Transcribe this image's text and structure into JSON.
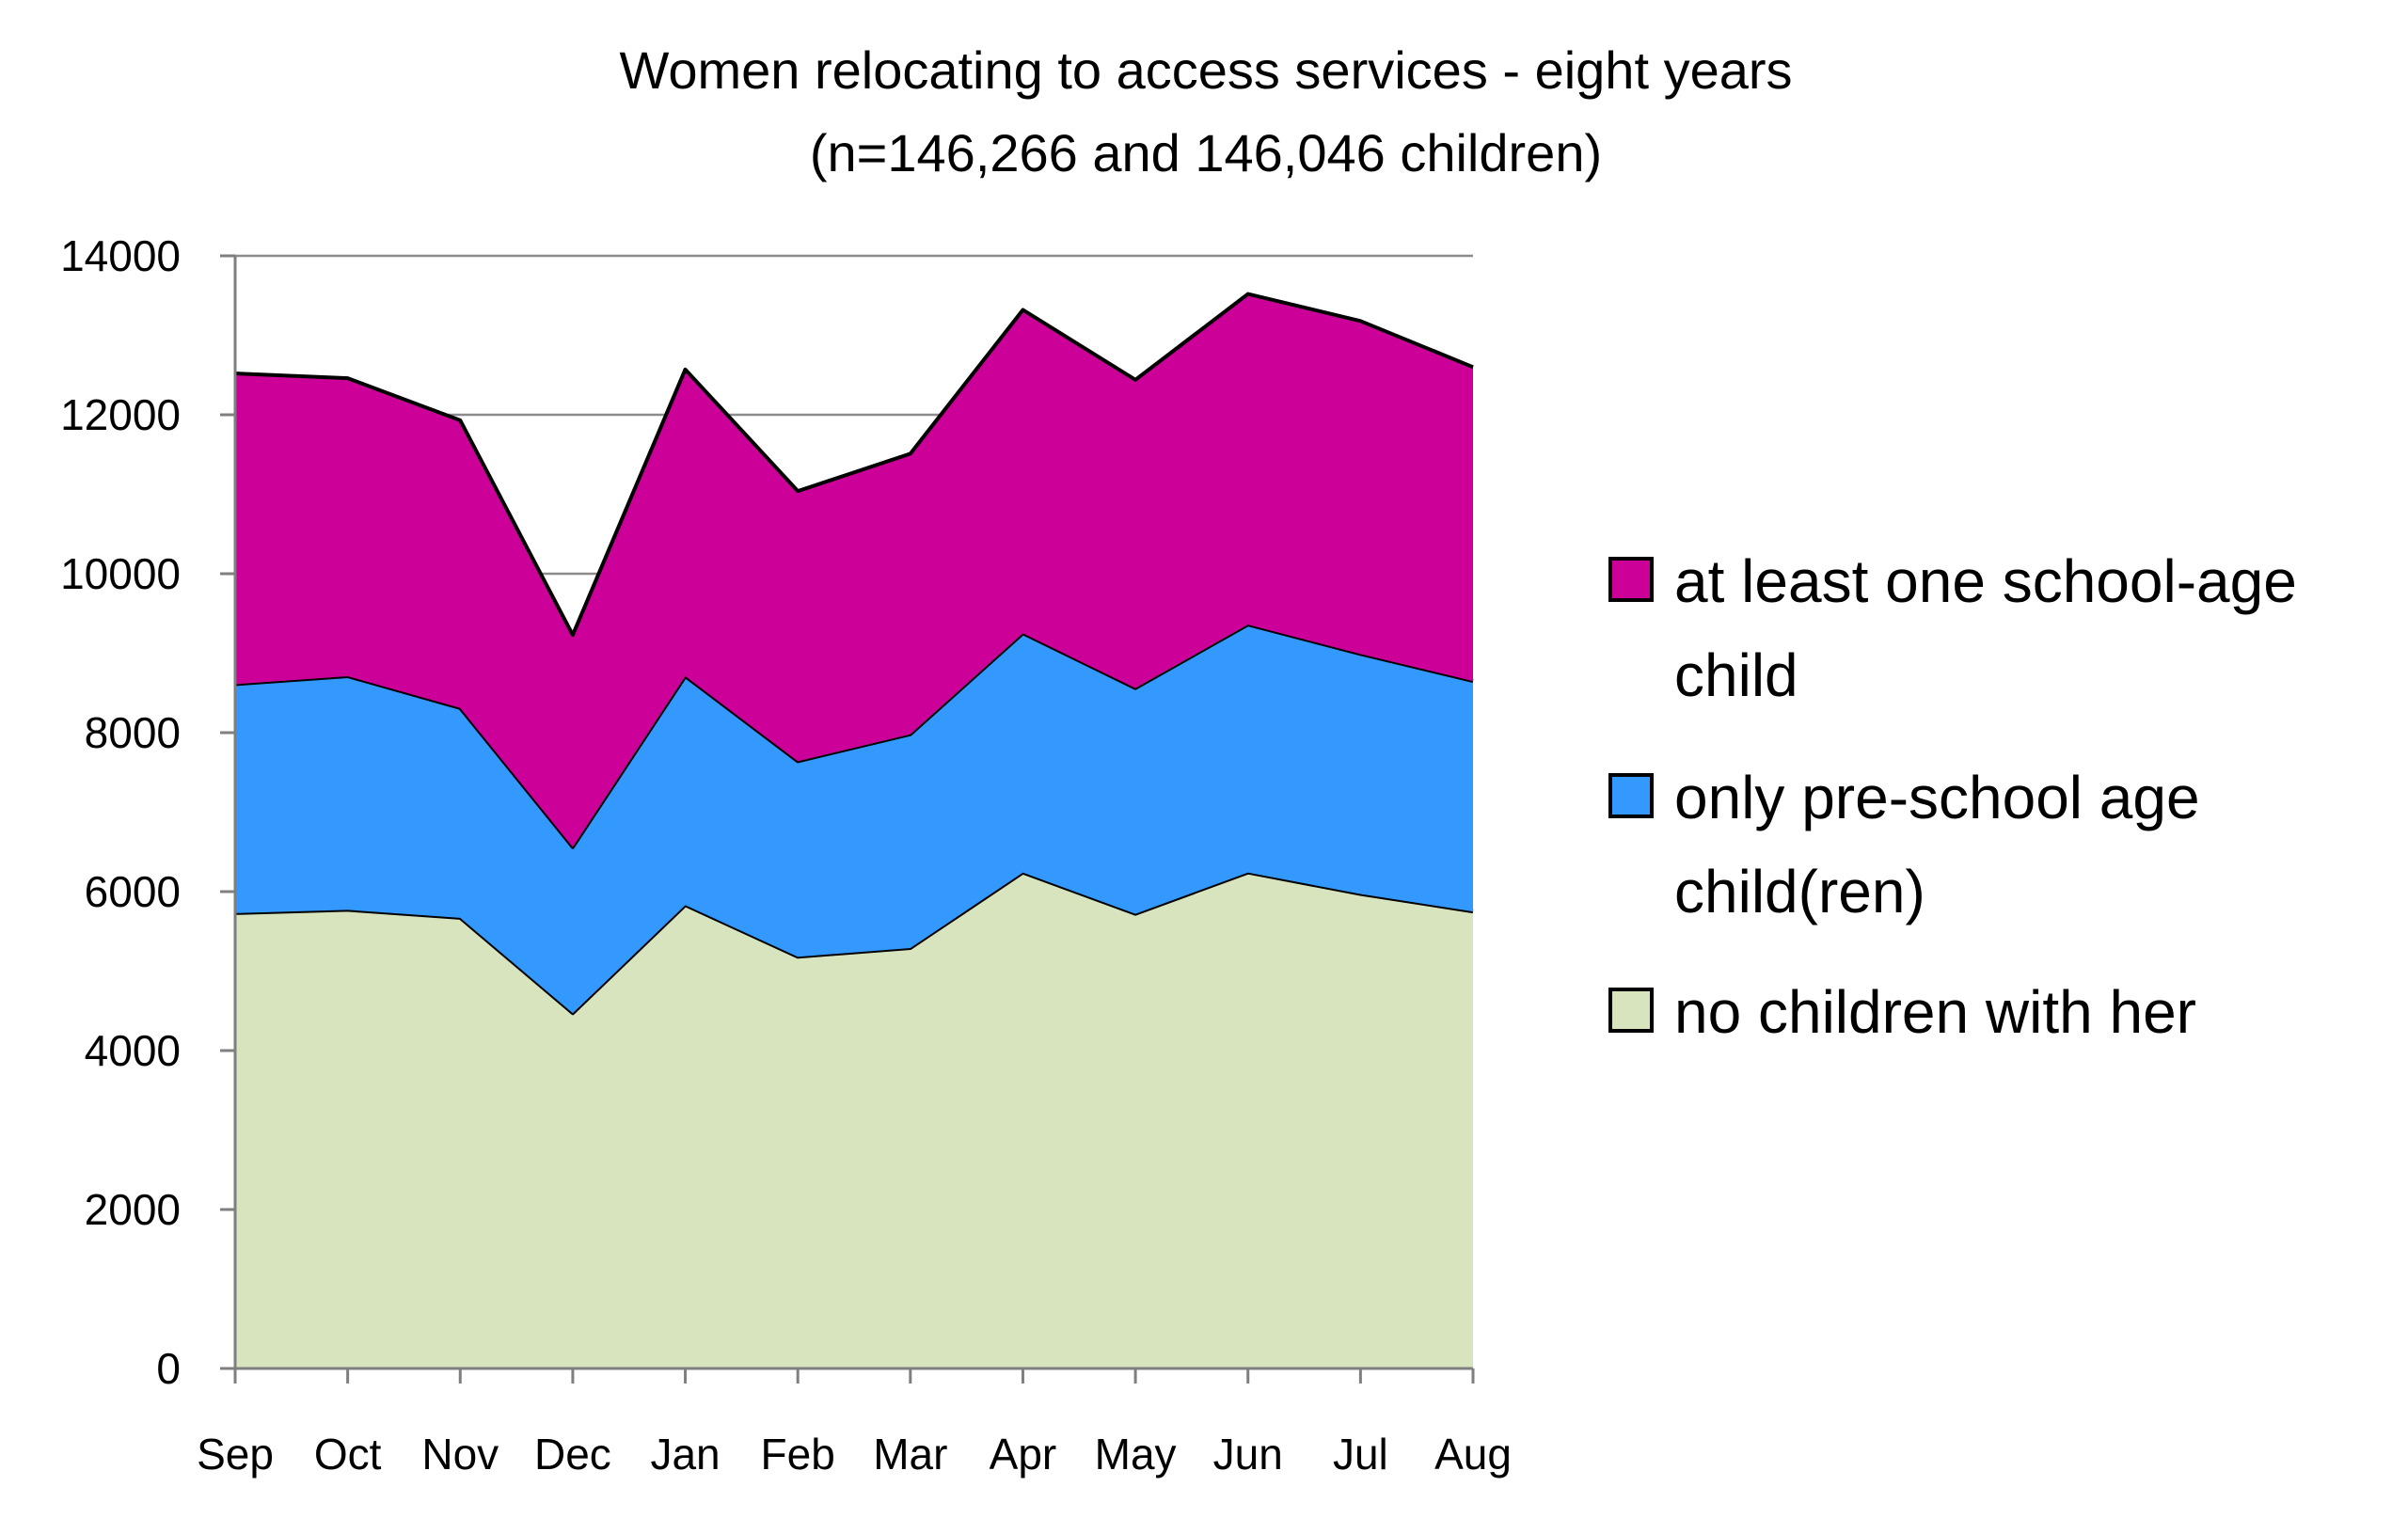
{
  "chart_data": {
    "type": "area",
    "stacked": true,
    "title": "Women relocating to access services - eight years",
    "subtitle": "(n=146,266 and 146,046 children)",
    "xlabel": "",
    "ylabel": "",
    "categories": [
      "Sep",
      "Oct",
      "Nov",
      "Dec",
      "Jan",
      "Feb",
      "Mar",
      "Apr",
      "May",
      "Jun",
      "Jul",
      "Aug"
    ],
    "ylim": [
      0,
      14000
    ],
    "yticks": [
      0,
      2000,
      4000,
      6000,
      8000,
      10000,
      12000,
      14000
    ],
    "grid": true,
    "legend_position": "right",
    "legend_order": [
      "at least one school-age child",
      "only pre-school age child(ren)",
      "no children with her"
    ],
    "series": [
      {
        "name": "no children with her",
        "color": "#d7e4bd",
        "values": [
          5730,
          5770,
          5670,
          4470,
          5830,
          5180,
          5290,
          6240,
          5720,
          6240,
          5970,
          5750
        ]
      },
      {
        "name": "only pre-school age child(ren)",
        "color": "#3399ff",
        "values": [
          2880,
          2940,
          2640,
          2090,
          2880,
          2460,
          2690,
          3010,
          2840,
          3120,
          3020,
          2900
        ]
      },
      {
        "name": "at least one school-age child",
        "color": "#cc0099",
        "values": [
          3910,
          3750,
          3620,
          2670,
          3860,
          3400,
          3530,
          4070,
          3880,
          4160,
          4190,
          3950
        ]
      }
    ]
  }
}
